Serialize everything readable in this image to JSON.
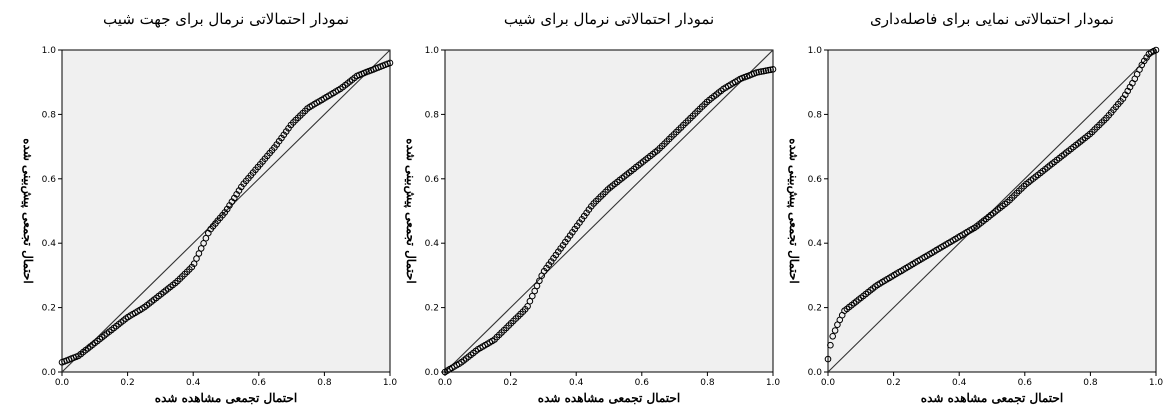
{
  "chart_data": [
    {
      "type": "scatter",
      "title": "نمودار احتمالاتی نرمال برای جهت شیب",
      "xlabel": "احتمال تجمعی مشاهده شده",
      "ylabel": "احتمال تجمعی پیش‌بینی شده",
      "xlim": [
        0,
        1
      ],
      "ylim": [
        0,
        1
      ],
      "xticks": [
        "0.0",
        "0.2",
        "0.4",
        "0.6",
        "0.8",
        "1.0"
      ],
      "yticks": [
        "0.0",
        "0.2",
        "0.4",
        "0.6",
        "0.8",
        "1.0"
      ],
      "reference_line": "y=x",
      "plot_background": "#f0f0f0",
      "point_color": "#000000",
      "curve": [
        [
          0.0,
          0.03
        ],
        [
          0.05,
          0.05
        ],
        [
          0.1,
          0.09
        ],
        [
          0.15,
          0.13
        ],
        [
          0.2,
          0.17
        ],
        [
          0.25,
          0.2
        ],
        [
          0.3,
          0.24
        ],
        [
          0.35,
          0.28
        ],
        [
          0.4,
          0.33
        ],
        [
          0.45,
          0.44
        ],
        [
          0.5,
          0.5
        ],
        [
          0.55,
          0.58
        ],
        [
          0.6,
          0.64
        ],
        [
          0.65,
          0.7
        ],
        [
          0.7,
          0.77
        ],
        [
          0.75,
          0.82
        ],
        [
          0.8,
          0.85
        ],
        [
          0.85,
          0.88
        ],
        [
          0.9,
          0.92
        ],
        [
          0.95,
          0.94
        ],
        [
          1.0,
          0.96
        ]
      ]
    },
    {
      "type": "scatter",
      "title": "نمودار احتمالاتی نرمال برای شیب",
      "xlabel": "احتمال تجمعی مشاهده شده",
      "ylabel": "احتمال تجمعی پیش‌بینی شده",
      "xlim": [
        0,
        1
      ],
      "ylim": [
        0,
        1
      ],
      "xticks": [
        "0.0",
        "0.2",
        "0.4",
        "0.6",
        "0.8",
        "1.0"
      ],
      "yticks": [
        "0.0",
        "0.2",
        "0.4",
        "0.6",
        "0.8",
        "1.0"
      ],
      "reference_line": "y=x",
      "plot_background": "#f0f0f0",
      "point_color": "#000000",
      "curve": [
        [
          0.0,
          0.0
        ],
        [
          0.05,
          0.03
        ],
        [
          0.1,
          0.07
        ],
        [
          0.15,
          0.1
        ],
        [
          0.2,
          0.15
        ],
        [
          0.25,
          0.2
        ],
        [
          0.3,
          0.31
        ],
        [
          0.35,
          0.38
        ],
        [
          0.4,
          0.45
        ],
        [
          0.45,
          0.52
        ],
        [
          0.5,
          0.57
        ],
        [
          0.55,
          0.61
        ],
        [
          0.6,
          0.65
        ],
        [
          0.65,
          0.69
        ],
        [
          0.7,
          0.74
        ],
        [
          0.75,
          0.79
        ],
        [
          0.8,
          0.84
        ],
        [
          0.85,
          0.88
        ],
        [
          0.9,
          0.91
        ],
        [
          0.95,
          0.93
        ],
        [
          1.0,
          0.94
        ]
      ]
    },
    {
      "type": "scatter",
      "title": "نمودار احتمالاتی نمایی برای فاصله‌داری",
      "xlabel": "احتمال تجمعی مشاهده شده",
      "ylabel": "احتمال تجمعی پیش‌بینی شده",
      "xlim": [
        0,
        1
      ],
      "ylim": [
        0,
        1
      ],
      "xticks": [
        "0.0",
        "0.2",
        "0.4",
        "0.6",
        "0.8",
        "1.0"
      ],
      "yticks": [
        "0.0",
        "0.2",
        "0.4",
        "0.6",
        "0.8",
        "1.0"
      ],
      "reference_line": "y=x",
      "plot_background": "#f0f0f0",
      "point_color": "#000000",
      "curve": [
        [
          0.0,
          0.04
        ],
        [
          0.01,
          0.1
        ],
        [
          0.03,
          0.15
        ],
        [
          0.05,
          0.19
        ],
        [
          0.1,
          0.23
        ],
        [
          0.15,
          0.27
        ],
        [
          0.2,
          0.3
        ],
        [
          0.25,
          0.33
        ],
        [
          0.3,
          0.36
        ],
        [
          0.35,
          0.39
        ],
        [
          0.4,
          0.42
        ],
        [
          0.45,
          0.45
        ],
        [
          0.5,
          0.49
        ],
        [
          0.55,
          0.53
        ],
        [
          0.6,
          0.58
        ],
        [
          0.65,
          0.62
        ],
        [
          0.7,
          0.66
        ],
        [
          0.75,
          0.7
        ],
        [
          0.8,
          0.74
        ],
        [
          0.85,
          0.79
        ],
        [
          0.9,
          0.85
        ],
        [
          0.93,
          0.9
        ],
        [
          0.96,
          0.96
        ],
        [
          0.98,
          0.99
        ],
        [
          1.0,
          1.0
        ]
      ]
    }
  ]
}
